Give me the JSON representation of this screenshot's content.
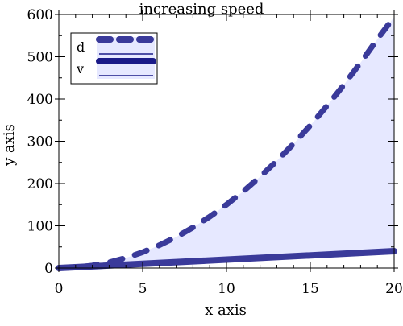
{
  "chart_data": {
    "type": "line",
    "title": "increasing speed",
    "xlabel": "x axis",
    "ylabel": "y axis",
    "xlim": [
      0,
      20
    ],
    "ylim": [
      0,
      600
    ],
    "x_ticks": [
      0,
      5,
      10,
      15,
      20
    ],
    "y_ticks": [
      0,
      100,
      200,
      300,
      400,
      500,
      600
    ],
    "grid": false,
    "legend_position": "top-left",
    "fill": {
      "between": [
        "d",
        "v"
      ],
      "color": "#e6e8ff"
    },
    "series": [
      {
        "name": "d",
        "style": "dashed",
        "color": "#3a3a9a",
        "x": [
          0,
          1,
          2,
          3,
          4,
          5,
          6,
          7,
          8,
          9,
          10,
          11,
          12,
          13,
          14,
          15,
          16,
          17,
          18,
          19,
          20
        ],
        "y": [
          0,
          1.5,
          6,
          13.5,
          24,
          37.5,
          54,
          73.5,
          96,
          121.5,
          150,
          181.5,
          216,
          253.5,
          294,
          337.5,
          384,
          433.5,
          486,
          541.5,
          594
        ]
      },
      {
        "name": "v",
        "style": "solid",
        "color": "#3a3a9a",
        "x": [
          0,
          20
        ],
        "y": [
          0,
          40
        ]
      }
    ]
  }
}
